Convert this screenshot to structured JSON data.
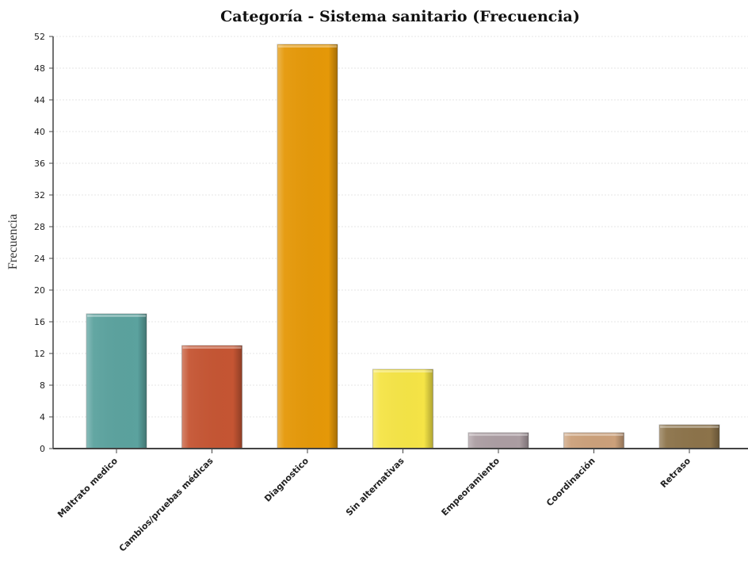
{
  "chart_data": {
    "type": "bar",
    "title": "Categoría - Sistema sanitario (Frecuencia)",
    "ylabel": "Frecuencia",
    "xlabel": "",
    "ylim": [
      0,
      52
    ],
    "yticks": [
      0,
      4,
      8,
      12,
      16,
      20,
      24,
      28,
      32,
      36,
      40,
      44,
      48,
      52
    ],
    "grid": true,
    "categories": [
      "Maltrato medico",
      "Cambios/pruebas médicas",
      "Diagnostico",
      "Sin alternativas",
      "Empeoramiento",
      "Coordinación",
      "Retraso"
    ],
    "values": [
      17,
      13,
      51,
      10,
      2,
      2,
      3
    ],
    "colors": [
      "#5ba29e",
      "#c55533",
      "#e59808",
      "#f5e446",
      "#ab9da2",
      "#cba07a",
      "#8c734a"
    ]
  }
}
